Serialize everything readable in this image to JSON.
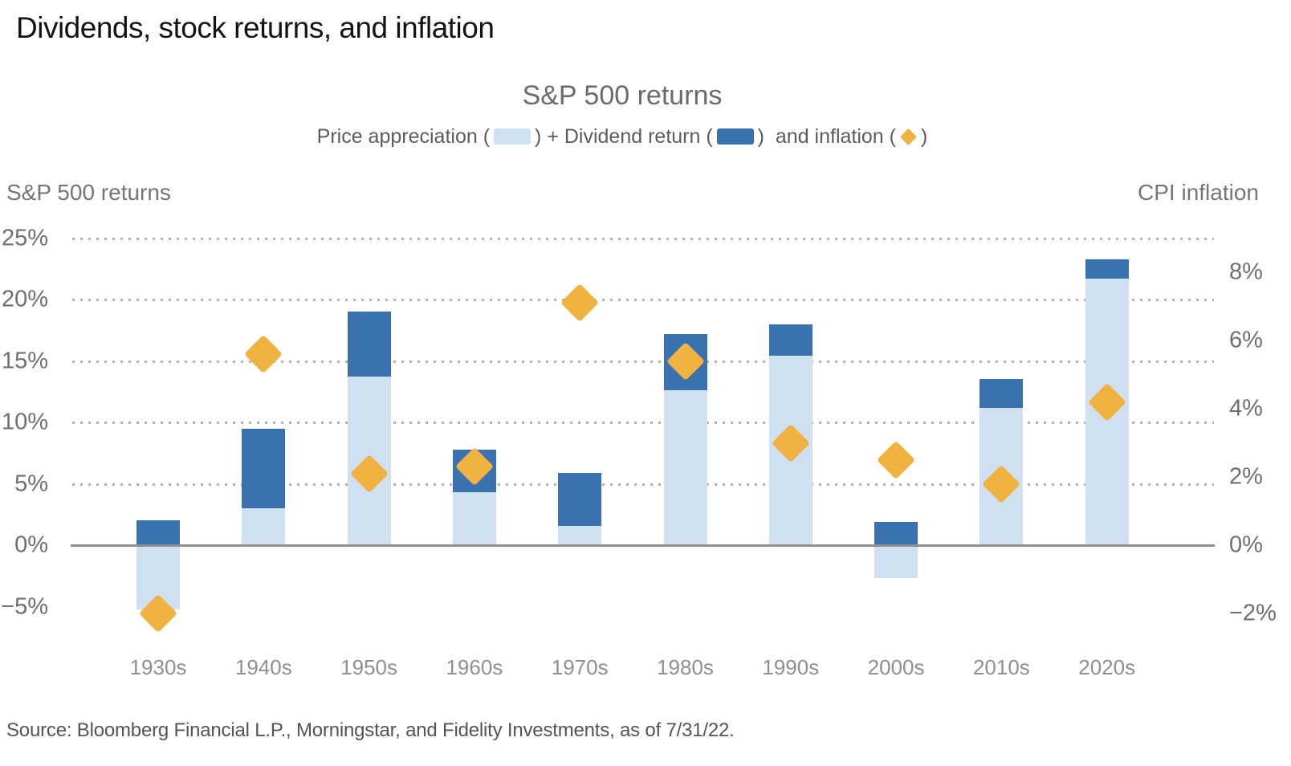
{
  "page": {
    "main_title": "Dividends, stock returns, and inflation",
    "source_line": "Source: Bloomberg Financial L.P., Morningstar, and Fidelity Investments, as of 7/31/22."
  },
  "legend": {
    "part1": "Price appreciation (",
    "part2": ") + Dividend return (",
    "part3": ")  and inflation (",
    "part4": ")"
  },
  "colors": {
    "price_appreciation": "#cfe0f0",
    "dividend_return": "#3a72af",
    "inflation_diamond": "#f0b342",
    "gridline": "#b3b3b3",
    "zero_axis": "#8f8f8f"
  },
  "chart_data": {
    "type": "bar",
    "title": "S&P 500 returns",
    "categories": [
      "1930s",
      "1940s",
      "1950s",
      "1960s",
      "1970s",
      "1980s",
      "1990s",
      "2000s",
      "2010s",
      "2020s"
    ],
    "series": [
      {
        "name": "Price appreciation",
        "role": "stacked-bar-base",
        "axis": "left",
        "color": "#cfe0f0",
        "values": [
          -5.2,
          3.0,
          13.7,
          4.3,
          1.6,
          12.6,
          15.4,
          -2.7,
          11.2,
          21.7
        ]
      },
      {
        "name": "Dividend return",
        "role": "stacked-bar-top",
        "axis": "left",
        "color": "#3a72af",
        "note_total_return_bar_top": true,
        "values": [
          2.0,
          9.5,
          19.0,
          7.8,
          5.9,
          17.2,
          18.0,
          1.9,
          13.5,
          23.3
        ]
      },
      {
        "name": "and inflation",
        "role": "scatter-diamond",
        "axis": "right",
        "color": "#f0b342",
        "values": [
          -2.0,
          5.6,
          2.1,
          2.3,
          7.1,
          5.4,
          3.0,
          2.5,
          1.8,
          4.2
        ]
      }
    ],
    "left_axis": {
      "title": "S&P 500 returns",
      "tick_labels": [
        "25%",
        "20%",
        "15%",
        "10%",
        "5%",
        "0%",
        "−5%"
      ],
      "tick_values": [
        25,
        20,
        15,
        10,
        5,
        0,
        -5
      ],
      "range": [
        -7.5,
        26.5
      ],
      "grid": "dotted horizontal lines at ticks above zero, solid line at zero"
    },
    "right_axis": {
      "title": "CPI inflation",
      "tick_labels": [
        "8%",
        "6%",
        "4%",
        "2%",
        "0%",
        "−2%"
      ],
      "tick_values": [
        8,
        6,
        4,
        2,
        0,
        -2
      ],
      "range": [
        -3.2,
        9.2
      ]
    },
    "legend_position": "top-center"
  }
}
